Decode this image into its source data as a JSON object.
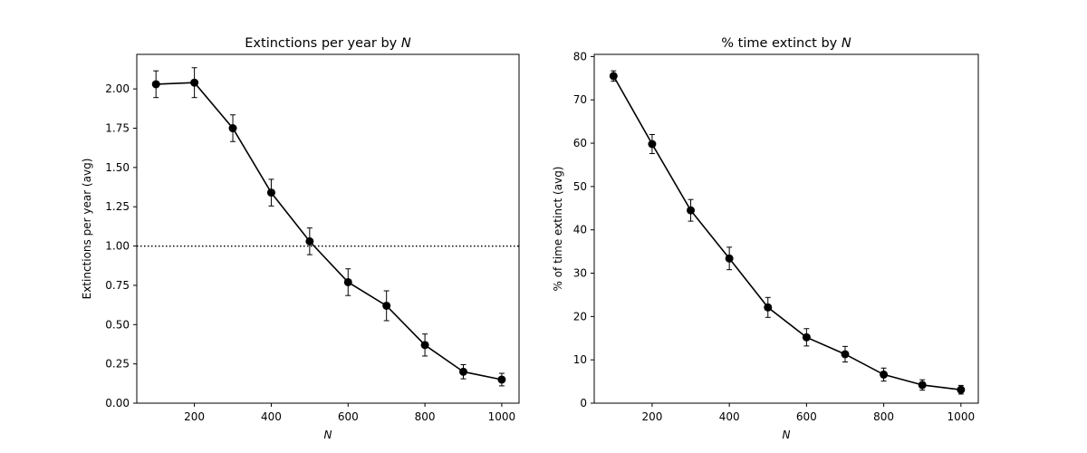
{
  "chart_data": [
    {
      "type": "line",
      "title": "Extinctions per year by ",
      "title_var": "N",
      "xlabel": "N",
      "ylabel": "Extinctions per year (avg)",
      "xlim": [
        50,
        1045
      ],
      "ylim": [
        0,
        2.22
      ],
      "xticks": [
        200,
        400,
        600,
        800,
        1000
      ],
      "xtick_labels": [
        "200",
        "400",
        "600",
        "800",
        "1000"
      ],
      "yticks": [
        0,
        0.25,
        0.5,
        0.75,
        1.0,
        1.25,
        1.5,
        1.75,
        2.0
      ],
      "ytick_labels": [
        "0.00",
        "0.25",
        "0.50",
        "0.75",
        "1.00",
        "1.25",
        "1.50",
        "1.75",
        "2.00"
      ],
      "reference_line": {
        "y": 1.0,
        "style": "dotted"
      },
      "series": [
        {
          "name": "Extinctions per year",
          "x": [
            100,
            200,
            300,
            400,
            500,
            600,
            700,
            800,
            900,
            1000
          ],
          "y": [
            2.03,
            2.04,
            1.75,
            1.34,
            1.03,
            0.77,
            0.62,
            0.37,
            0.2,
            0.15
          ],
          "err": [
            0.085,
            0.095,
            0.085,
            0.085,
            0.085,
            0.085,
            0.095,
            0.07,
            0.045,
            0.04
          ]
        }
      ],
      "color": "#000000"
    },
    {
      "type": "line",
      "title": "% time extinct by ",
      "title_var": "N",
      "xlabel": "N",
      "ylabel": "% of time extinct (avg)",
      "xlim": [
        50,
        1045
      ],
      "ylim": [
        0,
        80.5
      ],
      "xticks": [
        200,
        400,
        600,
        800,
        1000
      ],
      "xtick_labels": [
        "200",
        "400",
        "600",
        "800",
        "1000"
      ],
      "yticks": [
        0,
        10,
        20,
        30,
        40,
        50,
        60,
        70,
        80
      ],
      "ytick_labels": [
        "0",
        "10",
        "20",
        "30",
        "40",
        "50",
        "60",
        "70",
        "80"
      ],
      "series": [
        {
          "name": "% time extinct",
          "x": [
            100,
            200,
            300,
            400,
            500,
            600,
            700,
            800,
            900,
            1000
          ],
          "y": [
            75.5,
            59.8,
            44.5,
            33.4,
            22.1,
            15.2,
            11.3,
            6.6,
            4.2,
            3.1
          ],
          "err": [
            1.2,
            2.2,
            2.5,
            2.6,
            2.3,
            2.0,
            1.8,
            1.5,
            1.2,
            1.0
          ]
        }
      ],
      "color": "#000000"
    }
  ]
}
